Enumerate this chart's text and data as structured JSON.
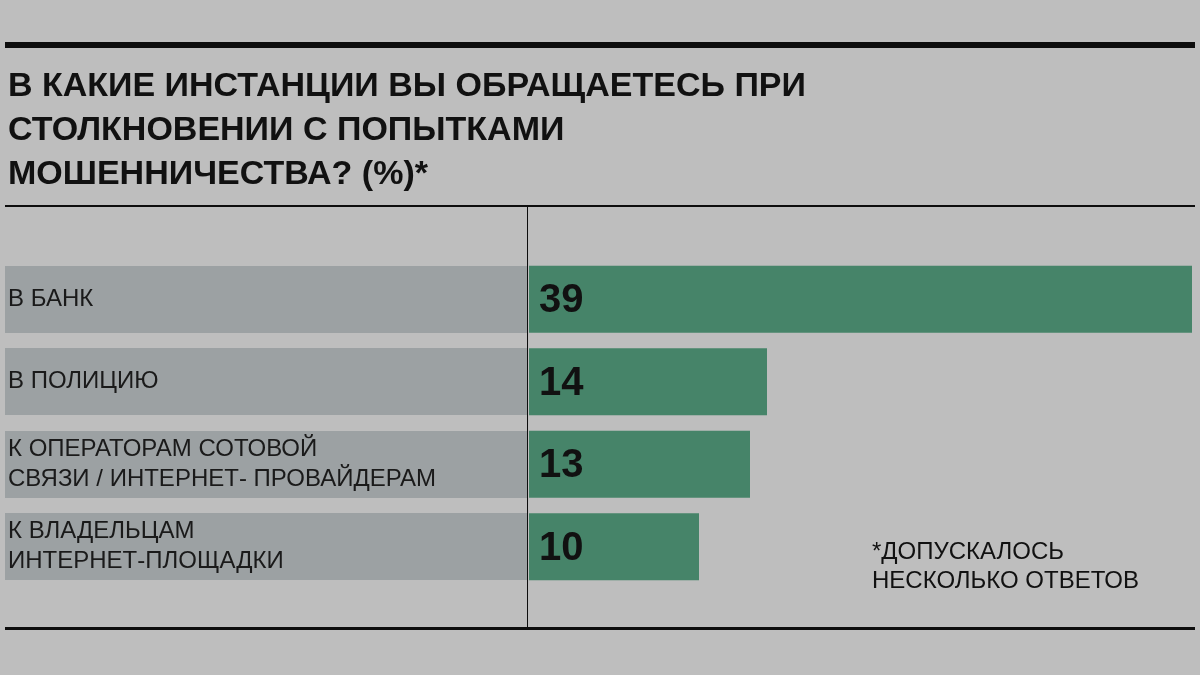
{
  "chart_data": {
    "type": "bar",
    "orientation": "horizontal",
    "title": "В КАКИЕ ИНСТАНЦИИ ВЫ ОБРАЩАЕТЕСЬ ПРИ СТОЛКНОВЕНИИ С ПОПЫТКАМИ МОШЕННИЧЕСТВА? (%)*",
    "categories": [
      "В БАНК",
      "В ПОЛИЦИЮ",
      "К ОПЕРАТОРАМ СОТОВОЙ\nСВЯЗИ / ИНТЕРНЕТ- ПРОВАЙДЕРАМ",
      "К ВЛАДЕЛЬЦАМ\nИНТЕРНЕТ-ПЛОЩАДКИ"
    ],
    "values": [
      39,
      14,
      13,
      10
    ],
    "color": "#468469",
    "data_labels": true,
    "annotations": [
      "*ДОПУСКАЛОСЬ НЕСКОЛЬКО ОТВЕТОВ"
    ]
  }
}
